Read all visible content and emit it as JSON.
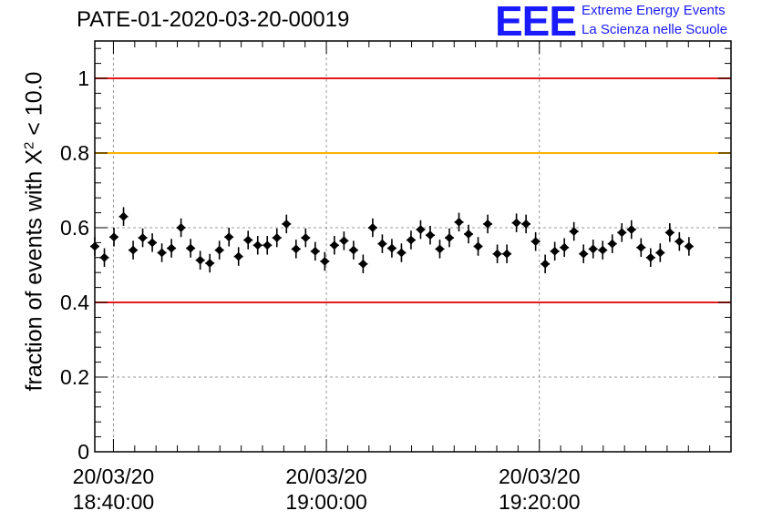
{
  "header": {
    "title": "PATE-01-2020-03-20-00019",
    "logo_text": "EEE",
    "org_line1": "Extreme Energy Events",
    "org_line2": "La Scienza nelle Scuole"
  },
  "colors": {
    "red_line": "#e41a1a",
    "orange_line": "#ffb300",
    "brand_blue": "#1a1aff",
    "marker": "#000000"
  },
  "chart_data": {
    "type": "scatter",
    "title": "PATE-01-2020-03-20-00019",
    "xlabel": "",
    "ylabel_prefix": "fraction of events with X",
    "ylabel_sup": "2",
    "ylabel_suffix": " < 10.0",
    "ylim": [
      0,
      1.1
    ],
    "y_ticks": [
      0,
      0.2,
      0.4,
      0.6,
      0.8,
      1
    ],
    "y_tick_labels": [
      "0",
      "0.2",
      "0.4",
      "0.6",
      "0.8",
      "1"
    ],
    "x_range": [
      "2020-03-20 18:38:15",
      "2020-03-20 19:38:00"
    ],
    "x_ticks": [
      "2020-03-20 18:40:00",
      "2020-03-20 19:00:00",
      "2020-03-20 19:20:00"
    ],
    "x_tick_labels": [
      [
        "20/03/20",
        "18:40:00"
      ],
      [
        "20/03/20",
        "19:00:00"
      ],
      [
        "20/03/20",
        "19:20:00"
      ]
    ],
    "grid": true,
    "reference_lines": [
      {
        "y": 1.0,
        "color": "#e41a1a"
      },
      {
        "y": 0.8,
        "color": "#ffb300"
      },
      {
        "y": 0.4,
        "color": "#e41a1a"
      }
    ],
    "x_start": "2020-03-20 18:38:15",
    "x_step_minutes": 0.9,
    "series": [
      {
        "values": [
          0.55,
          0.52,
          0.575,
          0.63,
          0.54,
          0.573,
          0.56,
          0.533,
          0.545,
          0.6,
          0.545,
          0.513,
          0.505,
          0.54,
          0.575,
          0.523,
          0.567,
          0.553,
          0.553,
          0.573,
          0.61,
          0.543,
          0.573,
          0.537,
          0.51,
          0.553,
          0.565,
          0.54,
          0.503,
          0.6,
          0.557,
          0.545,
          0.533,
          0.567,
          0.595,
          0.58,
          0.543,
          0.573,
          0.615,
          0.583,
          0.55,
          0.61,
          0.53,
          0.53,
          0.613,
          0.61,
          0.563,
          0.503,
          0.537,
          0.547,
          0.59,
          0.53,
          0.543,
          0.54,
          0.557,
          0.587,
          0.595,
          0.547,
          0.52,
          0.533,
          0.587,
          0.563,
          0.55
        ],
        "errors": 0.025
      }
    ]
  }
}
